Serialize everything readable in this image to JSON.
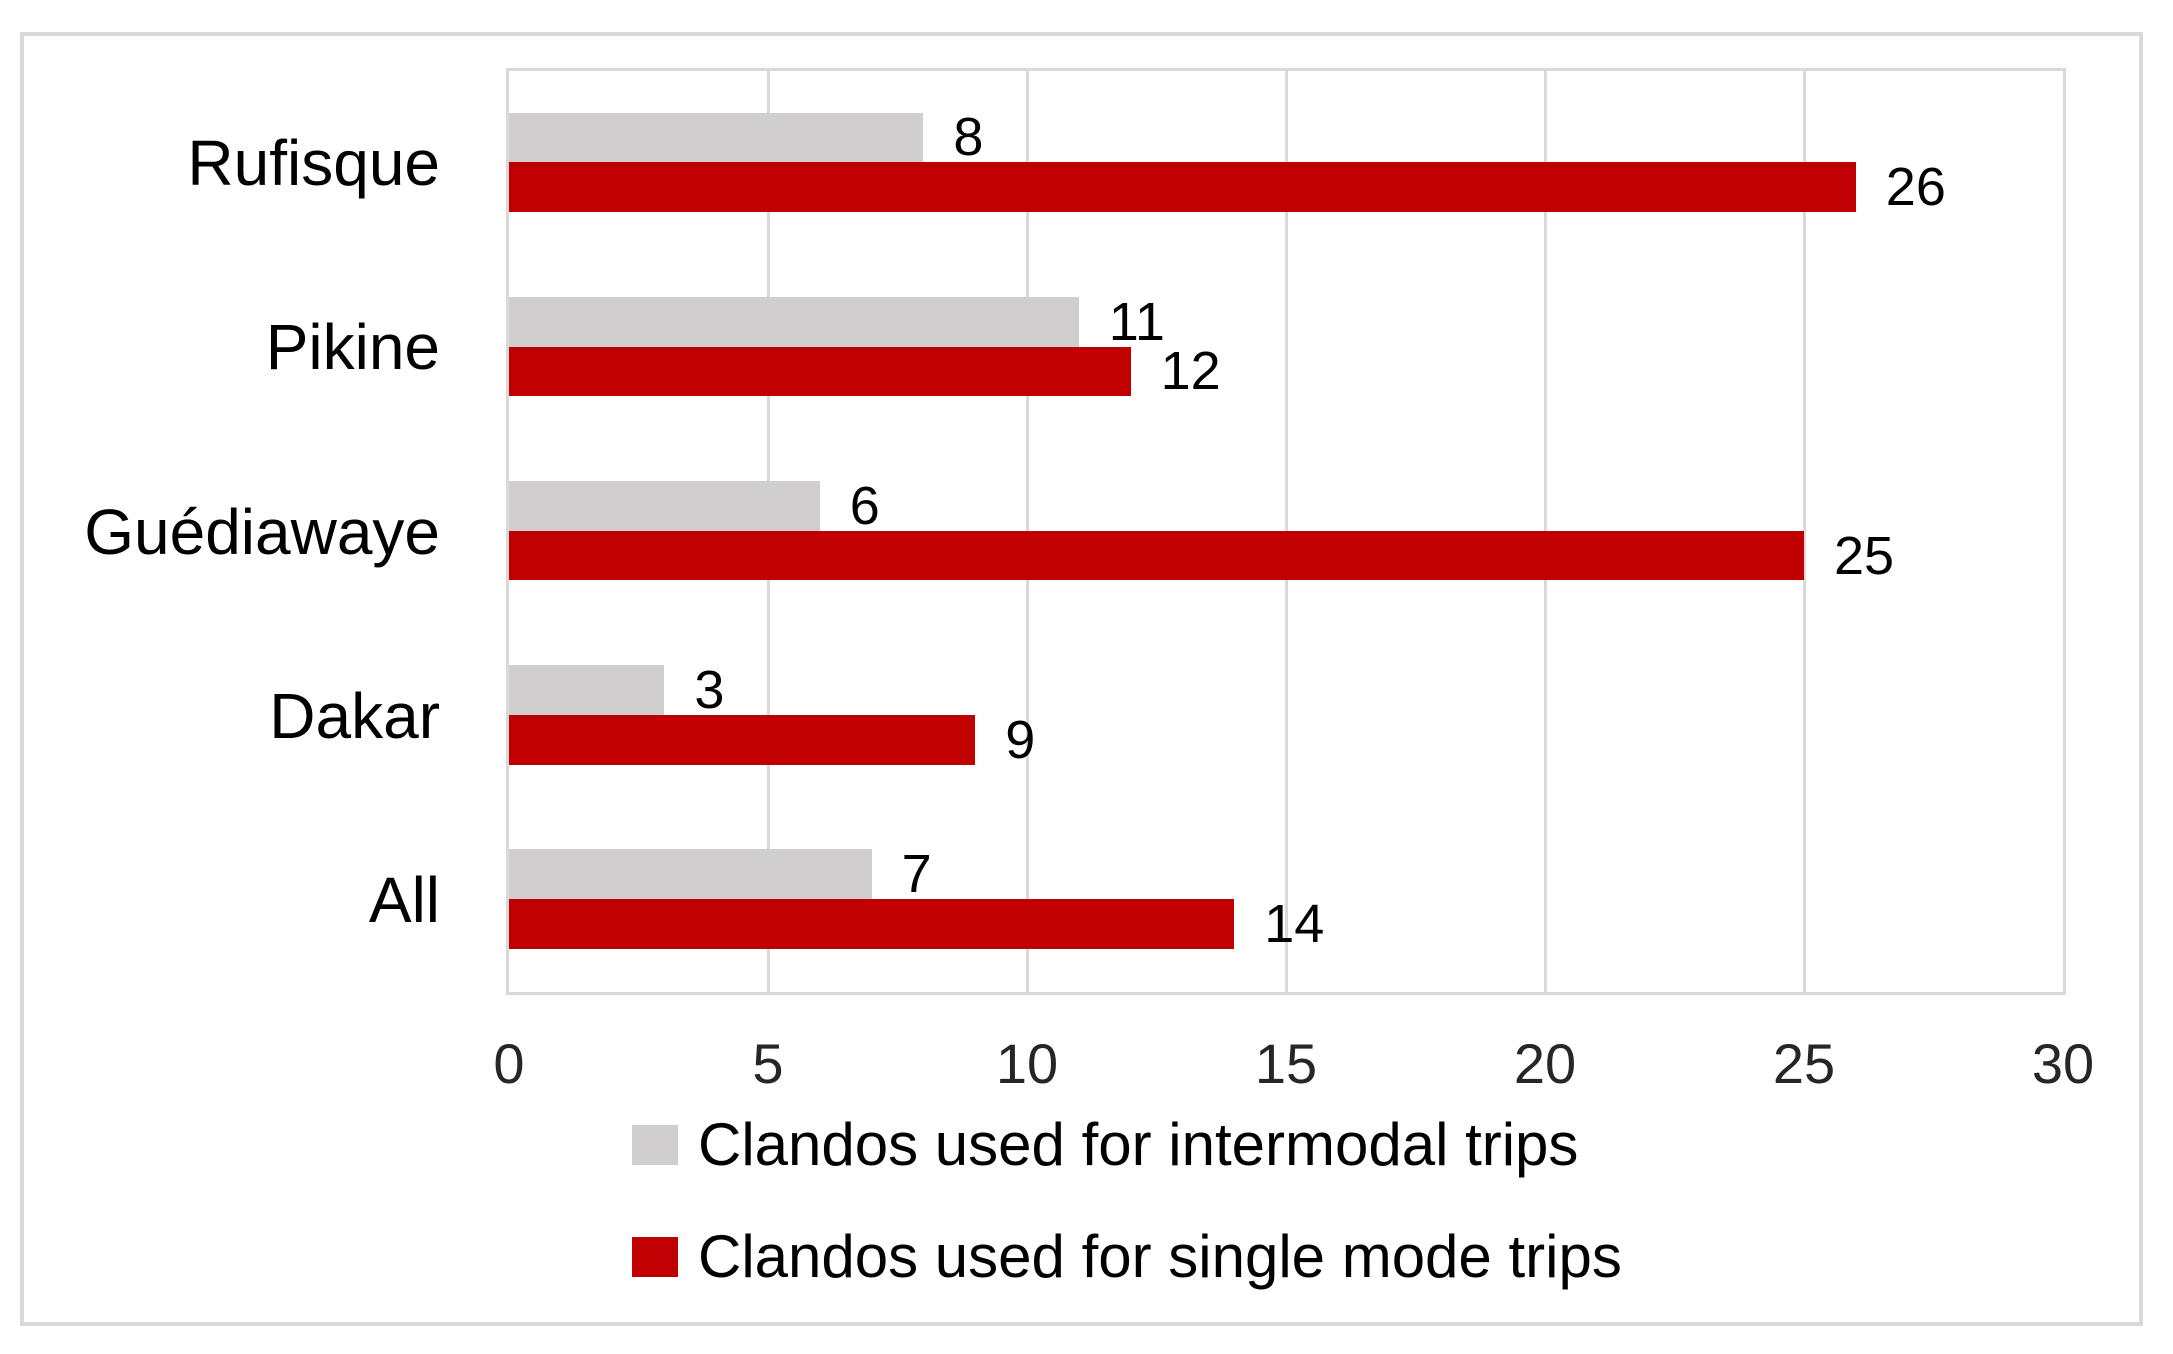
{
  "chart_data": {
    "type": "bar",
    "orientation": "horizontal",
    "title": "",
    "xlabel": "",
    "ylabel": "",
    "categories": [
      "Rufisque",
      "Pikine",
      "Guédiawaye",
      "Dakar",
      "All"
    ],
    "series": [
      {
        "name": "Clandos used for intermodal trips",
        "color": "#D0CECE",
        "values": [
          8,
          11,
          6,
          3,
          7
        ]
      },
      {
        "name": "Clandos used for single mode trips",
        "color": "#C00000",
        "values": [
          26,
          12,
          25,
          9,
          14
        ]
      }
    ],
    "data_labels": true,
    "xlim": [
      0,
      30
    ],
    "xticks": [
      0,
      5,
      10,
      15,
      20,
      25,
      30
    ],
    "grid": true,
    "gridline_color": "#D9D9D9",
    "frame_color": "#D9D9D9",
    "legend_position": "bottom-left-stacked"
  }
}
